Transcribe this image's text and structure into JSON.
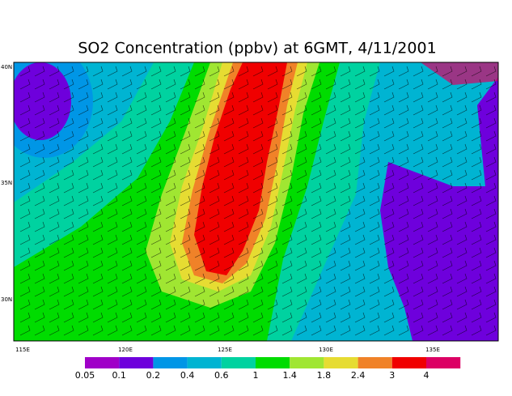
{
  "title": "SO2 Concentration (ppbv) at 6GMT, 4/11/2001",
  "map": {
    "lat_labels": [
      "40N",
      "35N",
      "30N"
    ],
    "lon_labels": [
      "115E",
      "120E",
      "125E",
      "130E",
      "135E"
    ]
  },
  "colorbar": {
    "labels": [
      "0.05",
      "0.1",
      "0.2",
      "0.4",
      "0.6",
      "1",
      "1.4",
      "1.8",
      "2.4",
      "3",
      "4"
    ],
    "colors": [
      "#a000c8",
      "#6e00dc",
      "#0096e6",
      "#00b4d2",
      "#00d2a0",
      "#00dc00",
      "#a0e632",
      "#e6dc32",
      "#f08228",
      "#f00000",
      "#dc0064"
    ]
  }
}
